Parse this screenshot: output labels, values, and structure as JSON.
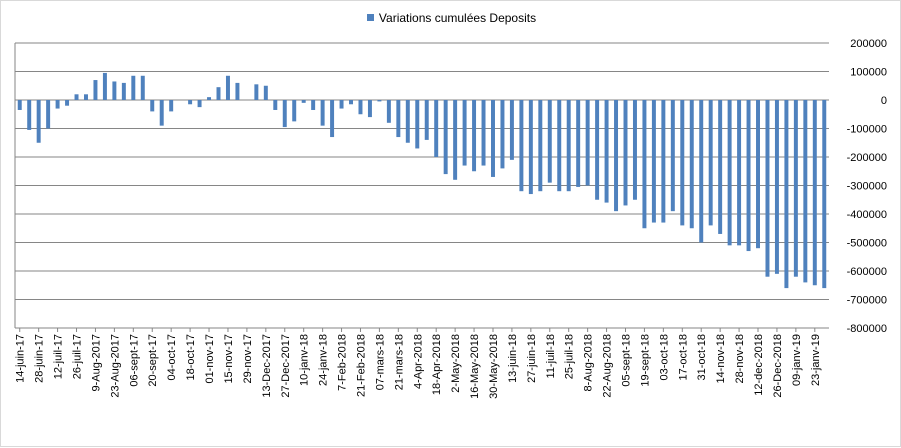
{
  "chart_data": {
    "type": "bar",
    "title": "",
    "legend": {
      "label": "Variations cumulées Deposits",
      "position": "top-center"
    },
    "xlabel": "",
    "ylabel": "",
    "ylim": [
      -800000,
      200000
    ],
    "y_ticks": [
      200000,
      100000,
      0,
      -100000,
      -200000,
      -300000,
      -400000,
      -500000,
      -600000,
      -700000,
      -800000
    ],
    "y_tick_labels": [
      "200000",
      "100000",
      "0",
      "-100000",
      "-200000",
      "-300000",
      "-400000",
      "-500000",
      "-600000",
      "-700000",
      "-800000"
    ],
    "grid": true,
    "bar_color": "#4f81bd",
    "x_tick_labels": [
      "14-juin-17",
      "28-juin-17",
      "12-juil-17",
      "26-juil-17",
      "9-Aug-2017",
      "23-Aug-2017",
      "06-sept-17",
      "20-sept-17",
      "04-oct-17",
      "18-oct-17",
      "01-nov-17",
      "15-nov-17",
      "29-nov-17",
      "13-Dec-2017",
      "27-Dec-2017",
      "10-janv-18",
      "24-janv-18",
      "7-Feb-2018",
      "21-Feb-2018",
      "07-mars-18",
      "21-mars-18",
      "4-Apr-2018",
      "18-Apr-2018",
      "2-May-2018",
      "16-May-2018",
      "30-May-2018",
      "13-juin-18",
      "27-juin-18",
      "11-juil-18",
      "25-juil-18",
      "8-Aug-2018",
      "22-Aug-2018",
      "05-sept-18",
      "19-sept-18",
      "03-oct-18",
      "17-oct-18",
      "31-oct-18",
      "14-nov-18",
      "28-nov-18",
      "12-dec-2018",
      "26-Dec-2018",
      "09-janv-19",
      "23-janv-19"
    ],
    "label_every": 2,
    "values": [
      -35000,
      -105000,
      -150000,
      -100000,
      -30000,
      -20000,
      20000,
      20000,
      70000,
      95000,
      65000,
      60000,
      85000,
      85000,
      -40000,
      -90000,
      -40000,
      0,
      -15000,
      -25000,
      10000,
      45000,
      85000,
      60000,
      0,
      55000,
      50000,
      -35000,
      -95000,
      -75000,
      -10000,
      -35000,
      -90000,
      -130000,
      -30000,
      -15000,
      -50000,
      -60000,
      -5000,
      -80000,
      -130000,
      -150000,
      -170000,
      -140000,
      -200000,
      -260000,
      -280000,
      -230000,
      -250000,
      -230000,
      -270000,
      -240000,
      -210000,
      -320000,
      -330000,
      -320000,
      -290000,
      -320000,
      -320000,
      -305000,
      -300000,
      -350000,
      -360000,
      -390000,
      -370000,
      -350000,
      -450000,
      -430000,
      -430000,
      -390000,
      -440000,
      -450000,
      -500000,
      -440000,
      -470000,
      -510000,
      -510000,
      -530000,
      -520000,
      -620000,
      -610000,
      -660000,
      -620000,
      -640000,
      -650000,
      -660000
    ]
  }
}
